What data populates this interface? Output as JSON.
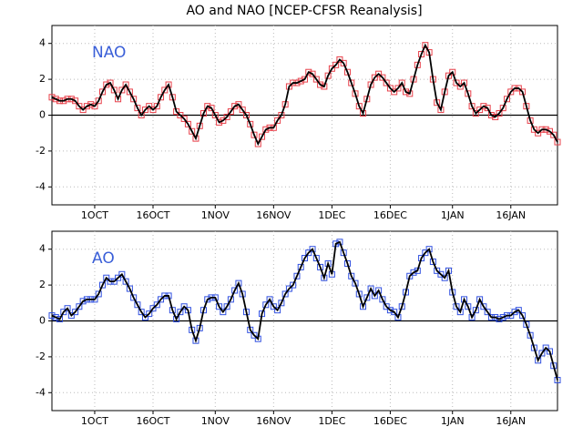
{
  "chart_data": [
    {
      "type": "line",
      "title": "AO and NAO [NCEP-CFSR Reanalysis]",
      "categories": [
        null,
        null,
        null,
        null,
        null,
        null,
        null,
        null,
        null,
        null,
        null,
        "1OCT",
        null,
        null,
        null,
        null,
        null,
        null,
        null,
        null,
        null,
        null,
        null,
        null,
        null,
        null,
        "16OCT",
        null,
        null,
        null,
        null,
        null,
        null,
        null,
        null,
        null,
        null,
        null,
        null,
        null,
        null,
        null,
        "1NOV",
        null,
        null,
        null,
        null,
        null,
        null,
        null,
        null,
        null,
        null,
        null,
        null,
        null,
        null,
        "16NOV",
        null,
        null,
        null,
        null,
        null,
        null,
        null,
        null,
        null,
        null,
        null,
        null,
        null,
        null,
        "1DEC",
        null,
        null,
        null,
        null,
        null,
        null,
        null,
        null,
        null,
        null,
        null,
        null,
        null,
        null,
        "16DEC",
        null,
        null,
        null,
        null,
        null,
        null,
        null,
        null,
        null,
        null,
        null,
        null,
        null,
        null,
        null,
        "1JAN",
        null,
        null,
        null,
        null,
        null,
        null,
        null,
        null,
        null,
        null,
        null,
        null,
        null,
        null,
        "16JAN",
        null,
        null,
        null,
        null,
        null,
        null,
        null,
        null,
        null,
        null,
        null,
        null
      ],
      "series": [
        {
          "name": "NAO",
          "color": "#000000",
          "marker_color": "#e8404a",
          "label_color": "#3a5fd8",
          "values": [
            1.0,
            0.9,
            0.8,
            0.8,
            0.9,
            0.9,
            0.8,
            0.5,
            0.3,
            0.5,
            0.6,
            0.5,
            0.8,
            1.3,
            1.7,
            1.8,
            1.4,
            0.9,
            1.4,
            1.7,
            1.3,
            0.9,
            0.4,
            0.0,
            0.3,
            0.5,
            0.3,
            0.5,
            1.0,
            1.4,
            1.7,
            1.0,
            0.2,
            0.0,
            -0.2,
            -0.5,
            -0.9,
            -1.3,
            -0.6,
            0.1,
            0.5,
            0.4,
            0.0,
            -0.4,
            -0.3,
            -0.1,
            0.2,
            0.5,
            0.6,
            0.3,
            0.0,
            -0.5,
            -1.1,
            -1.6,
            -1.2,
            -0.8,
            -0.7,
            -0.7,
            -0.3,
            0.0,
            0.6,
            1.6,
            1.8,
            1.8,
            1.9,
            2.0,
            2.4,
            2.3,
            2.0,
            1.7,
            1.6,
            2.2,
            2.6,
            2.8,
            3.1,
            2.9,
            2.4,
            1.8,
            1.2,
            0.5,
            0.1,
            0.9,
            1.7,
            2.1,
            2.3,
            2.1,
            1.8,
            1.5,
            1.3,
            1.5,
            1.8,
            1.3,
            1.2,
            2.0,
            2.8,
            3.4,
            3.9,
            3.5,
            2.0,
            0.7,
            0.3,
            1.3,
            2.2,
            2.4,
            1.8,
            1.6,
            1.8,
            1.2,
            0.5,
            0.1,
            0.3,
            0.5,
            0.4,
            0.0,
            -0.1,
            0.1,
            0.4,
            0.9,
            1.3,
            1.5,
            1.5,
            1.3,
            0.5,
            -0.3,
            -0.8,
            -1.0,
            -0.8,
            -0.8,
            -0.9,
            -1.1,
            -1.5
          ]
        }
      ],
      "ylim": [
        -5,
        5
      ],
      "yticks": [
        -4,
        -2,
        0,
        2,
        4
      ],
      "grid": true
    },
    {
      "type": "line",
      "categories": [
        null,
        null,
        null,
        null,
        null,
        null,
        null,
        null,
        null,
        null,
        null,
        "1OCT",
        null,
        null,
        null,
        null,
        null,
        null,
        null,
        null,
        null,
        null,
        null,
        null,
        null,
        null,
        "16OCT",
        null,
        null,
        null,
        null,
        null,
        null,
        null,
        null,
        null,
        null,
        null,
        null,
        null,
        null,
        null,
        "1NOV",
        null,
        null,
        null,
        null,
        null,
        null,
        null,
        null,
        null,
        null,
        null,
        null,
        null,
        null,
        "16NOV",
        null,
        null,
        null,
        null,
        null,
        null,
        null,
        null,
        null,
        null,
        null,
        null,
        null,
        null,
        "1DEC",
        null,
        null,
        null,
        null,
        null,
        null,
        null,
        null,
        null,
        null,
        null,
        null,
        null,
        null,
        "16DEC",
        null,
        null,
        null,
        null,
        null,
        null,
        null,
        null,
        null,
        null,
        null,
        null,
        null,
        null,
        null,
        "1JAN",
        null,
        null,
        null,
        null,
        null,
        null,
        null,
        null,
        null,
        null,
        null,
        null,
        null,
        null,
        "16JAN",
        null,
        null,
        null,
        null,
        null,
        null,
        null,
        null,
        null,
        null,
        null,
        null
      ],
      "series": [
        {
          "name": "AO",
          "color": "#000000",
          "marker_color": "#3050e0",
          "label_color": "#3a5fd8",
          "values": [
            0.3,
            0.2,
            0.1,
            0.5,
            0.7,
            0.3,
            0.5,
            0.8,
            1.1,
            1.2,
            1.2,
            1.2,
            1.5,
            2.0,
            2.4,
            2.2,
            2.2,
            2.4,
            2.6,
            2.2,
            1.8,
            1.3,
            0.9,
            0.5,
            0.2,
            0.4,
            0.7,
            0.9,
            1.2,
            1.4,
            1.4,
            0.6,
            0.1,
            0.5,
            0.8,
            0.6,
            -0.5,
            -1.1,
            -0.4,
            0.6,
            1.2,
            1.3,
            1.3,
            0.8,
            0.5,
            0.8,
            1.2,
            1.7,
            2.1,
            1.5,
            0.5,
            -0.5,
            -0.8,
            -1.0,
            0.4,
            0.9,
            1.2,
            0.8,
            0.6,
            1.0,
            1.5,
            1.8,
            2.0,
            2.5,
            3.0,
            3.5,
            3.8,
            4.0,
            3.5,
            3.0,
            2.4,
            3.2,
            2.6,
            4.3,
            4.4,
            3.8,
            3.2,
            2.5,
            2.1,
            1.5,
            0.8,
            1.3,
            1.8,
            1.4,
            1.7,
            1.2,
            0.8,
            0.6,
            0.5,
            0.2,
            0.8,
            1.6,
            2.5,
            2.7,
            2.8,
            3.5,
            3.8,
            4.0,
            3.3,
            2.8,
            2.6,
            2.4,
            2.8,
            1.6,
            0.8,
            0.5,
            1.2,
            0.8,
            0.2,
            0.6,
            1.2,
            0.8,
            0.5,
            0.2,
            0.2,
            0.1,
            0.2,
            0.3,
            0.3,
            0.5,
            0.6,
            0.3,
            -0.2,
            -0.8,
            -1.5,
            -2.2,
            -1.8,
            -1.5,
            -1.7,
            -2.5,
            -3.3
          ]
        }
      ],
      "ylim": [
        -5,
        5
      ],
      "yticks": [
        -4,
        -2,
        0,
        2,
        4
      ],
      "grid": true
    }
  ]
}
